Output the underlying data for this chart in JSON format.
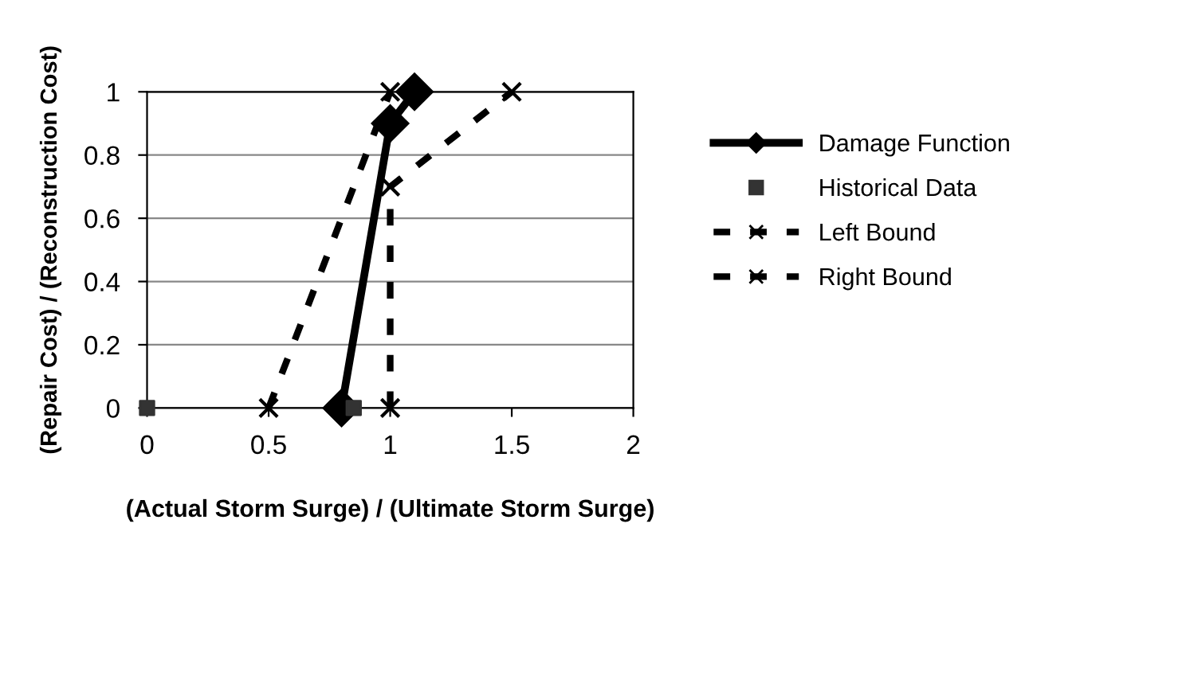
{
  "chart_data": {
    "type": "line",
    "xlabel": "(Actual Storm Surge) / (Ultimate Storm Surge)",
    "ylabel": "(Repair Cost) / (Reconstruction Cost)",
    "xlim": [
      0,
      2
    ],
    "xticks": [
      0,
      0.5,
      1,
      1.5,
      2
    ],
    "ylim": [
      0,
      1
    ],
    "yticks": [
      0,
      0.2,
      0.4,
      0.6,
      0.8,
      1
    ],
    "grid": "y",
    "legend": "right",
    "series": [
      {
        "name": "Damage Function",
        "color": "#000000",
        "marker": "diamond",
        "line_style": "solid",
        "x": [
          0.8,
          1,
          1.1
        ],
        "values": [
          0,
          0.9,
          1
        ]
      },
      {
        "name": "Historical Data",
        "type": "scatter",
        "color": "#333333",
        "marker": "square",
        "x": [
          0,
          0.85
        ],
        "values": [
          0,
          0
        ]
      },
      {
        "name": "Left Bound",
        "color": "#000000",
        "marker": "cross",
        "line_style": "dashed",
        "x": [
          0.5,
          1
        ],
        "values": [
          0,
          1
        ]
      },
      {
        "name": "Right Bound",
        "color": "#000000",
        "marker": "cross",
        "line_style": "dashed",
        "x": [
          1,
          1,
          1.5
        ],
        "values": [
          0,
          0.7,
          1
        ]
      }
    ]
  }
}
